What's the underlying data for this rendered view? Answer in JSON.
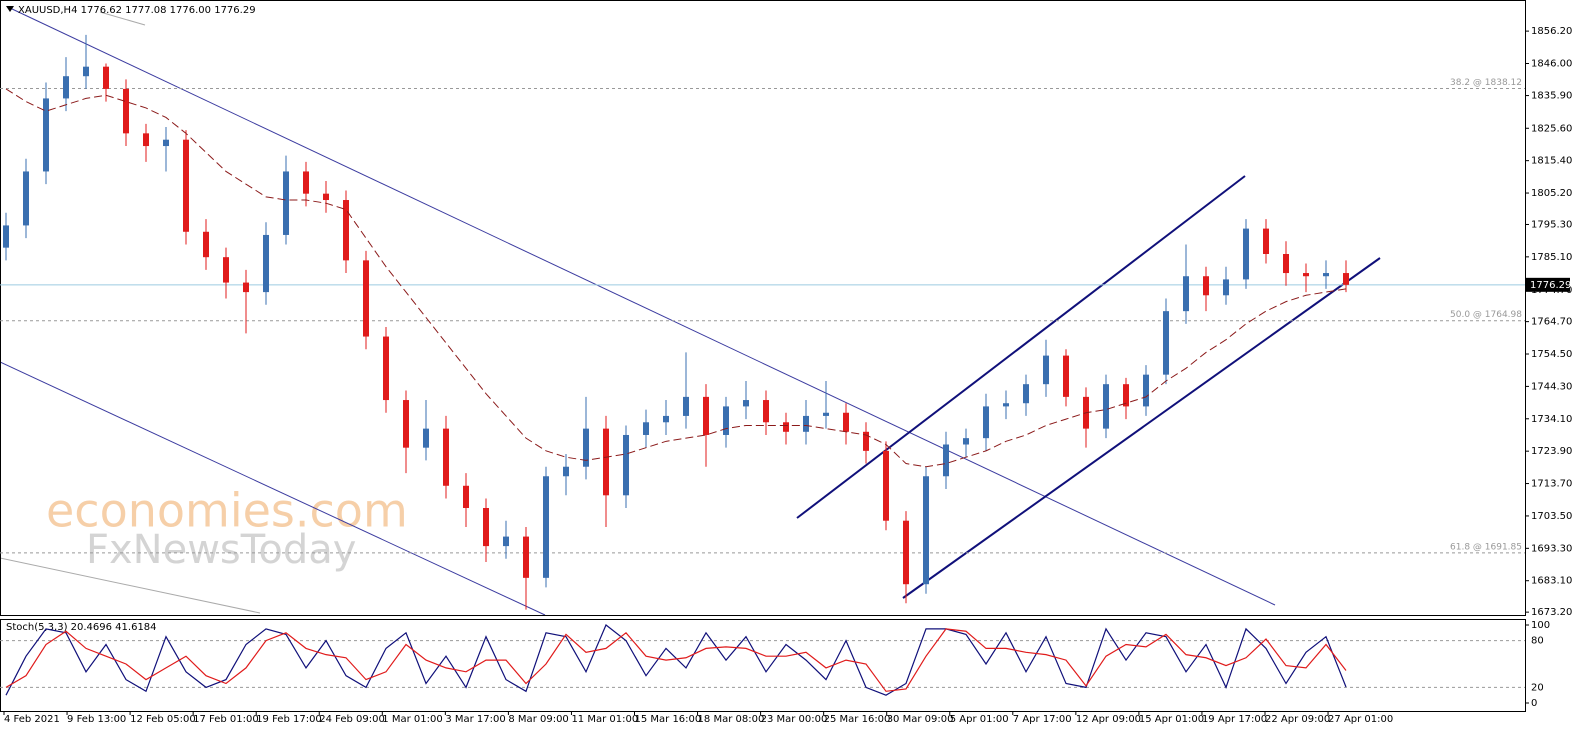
{
  "chart_data": [
    {
      "type": "candlestick",
      "title": "XAUUSD,H4  1776.62 1777.08 1776.00 1776.29",
      "watermark": [
        "economies.com",
        "FxNewsToday"
      ],
      "up_color": "#3a6fb0",
      "down_color": "#e01b1b",
      "open": [
        1788,
        1795,
        1812,
        1835,
        1842,
        1845,
        1838,
        1824,
        1820,
        1822,
        1793,
        1785,
        1777,
        1774,
        1792,
        1812,
        1805,
        1803,
        1784,
        1760,
        1740,
        1725,
        1731,
        1713,
        1706,
        1694,
        1697,
        1684,
        1716,
        1719,
        1731,
        1710,
        1729,
        1733,
        1735,
        1741,
        1729,
        1738,
        1740,
        1733,
        1730,
        1735,
        1736,
        1730,
        1724,
        1702,
        1682,
        1716,
        1726,
        1728,
        1738,
        1739,
        1745,
        1754,
        1741,
        1731,
        1745,
        1738,
        1748,
        1768,
        1779,
        1773,
        1778,
        1794,
        1786,
        1780,
        1779,
        1780
      ],
      "high": [
        1799,
        1816,
        1840,
        1848,
        1855,
        1846,
        1841,
        1827,
        1826,
        1825,
        1797,
        1788,
        1781,
        1796,
        1817,
        1815,
        1809,
        1806,
        1787,
        1763,
        1743,
        1740,
        1735,
        1717,
        1709,
        1702,
        1700,
        1719,
        1723,
        1741,
        1735,
        1732,
        1737,
        1740,
        1755,
        1745,
        1741,
        1746,
        1743,
        1736,
        1740,
        1746,
        1739,
        1733,
        1727,
        1705,
        1719,
        1730,
        1731,
        1742,
        1743,
        1748,
        1759,
        1756,
        1744,
        1748,
        1747,
        1751,
        1772,
        1789,
        1782,
        1782,
        1797,
        1797,
        1790,
        1783,
        1784,
        1784
      ],
      "low": [
        1784,
        1791,
        1808,
        1831,
        1838,
        1834,
        1820,
        1815,
        1812,
        1789,
        1781,
        1772,
        1761,
        1770,
        1789,
        1801,
        1799,
        1780,
        1756,
        1736,
        1717,
        1721,
        1709,
        1700,
        1689,
        1690,
        1674,
        1681,
        1710,
        1715,
        1700,
        1706,
        1725,
        1729,
        1731,
        1719,
        1725,
        1734,
        1729,
        1726,
        1726,
        1731,
        1726,
        1720,
        1699,
        1676,
        1679,
        1712,
        1722,
        1724,
        1734,
        1735,
        1741,
        1738,
        1725,
        1728,
        1734,
        1735,
        1745,
        1764,
        1768,
        1770,
        1775,
        1783,
        1776,
        1774,
        1775,
        1774
      ],
      "close": [
        1795,
        1812,
        1835,
        1842,
        1845,
        1838,
        1824,
        1820,
        1822,
        1793,
        1785,
        1777,
        1774,
        1792,
        1812,
        1805,
        1803,
        1784,
        1760,
        1740,
        1725,
        1731,
        1713,
        1706,
        1694,
        1697,
        1684,
        1716,
        1719,
        1731,
        1710,
        1729,
        1733,
        1735,
        1741,
        1729,
        1738,
        1740,
        1733,
        1730,
        1735,
        1736,
        1730,
        1724,
        1702,
        1682,
        1716,
        1726,
        1728,
        1738,
        1739,
        1745,
        1754,
        1741,
        1731,
        1745,
        1738,
        1748,
        1768,
        1779,
        1773,
        1778,
        1794,
        1786,
        1780,
        1779,
        1780,
        1776.29
      ],
      "overlay": {
        "color": "#8b1a1a",
        "values": [
          1838,
          1834,
          1831,
          1833,
          1835,
          1836,
          1834,
          1832,
          1829,
          1824,
          1818,
          1812,
          1808,
          1804,
          1803,
          1803,
          1802,
          1800,
          1791,
          1782,
          1774,
          1766,
          1758,
          1750,
          1742,
          1735,
          1728,
          1724,
          1722,
          1721,
          1722,
          1723,
          1725,
          1727,
          1728,
          1729,
          1731,
          1732,
          1732,
          1732,
          1732,
          1731,
          1730,
          1729,
          1726,
          1720,
          1719,
          1720,
          1722,
          1724,
          1727,
          1729,
          1732,
          1734,
          1736,
          1737,
          1739,
          1741,
          1746,
          1750,
          1755,
          1759,
          1764,
          1768,
          1771,
          1773,
          1774,
          1775
        ]
      },
      "current_price": 1776.29,
      "levels": [
        {
          "value": 1838.12,
          "label": "38.2 @ 1838.12"
        },
        {
          "value": 1764.98,
          "label": "50.0 @ 1764.98"
        },
        {
          "value": 1691.85,
          "label": "61.8 @ 1691.85"
        }
      ],
      "ylim": [
        1672.3,
        1866.0
      ],
      "yticks": [
        {
          "value": 1856.2,
          "label": "1856.20"
        },
        {
          "value": 1846.0,
          "label": "1846.00"
        },
        {
          "value": 1835.9,
          "label": "1835.90"
        },
        {
          "value": 1825.6,
          "label": "1825.60"
        },
        {
          "value": 1815.4,
          "label": "1815.40"
        },
        {
          "value": 1805.2,
          "label": "1805.20"
        },
        {
          "value": 1795.3,
          "label": "1795.30"
        },
        {
          "value": 1785.1,
          "label": "1785.10"
        },
        {
          "value": 1774.7,
          "label": "1774.70"
        },
        {
          "value": 1764.7,
          "label": "1764.70"
        },
        {
          "value": 1754.5,
          "label": "1754.50"
        },
        {
          "value": 1744.3,
          "label": "1744.30"
        },
        {
          "value": 1734.1,
          "label": "1734.10"
        },
        {
          "value": 1723.9,
          "label": "1723.90"
        },
        {
          "value": 1713.7,
          "label": "1713.70"
        },
        {
          "value": 1703.5,
          "label": "1703.50"
        },
        {
          "value": 1693.3,
          "label": "1693.30"
        },
        {
          "value": 1683.1,
          "label": "1683.10"
        },
        {
          "value": 1673.2,
          "label": "1673.20"
        }
      ],
      "time_labels": [
        "4 Feb 2021",
        "9 Feb 13:00",
        "12 Feb 05:00",
        "17 Feb 01:00",
        "19 Feb 17:00",
        "24 Feb 09:00",
        "1 Mar 01:00",
        "3 Mar 17:00",
        "8 Mar 09:00",
        "11 Mar 01:00",
        "15 Mar 16:00",
        "18 Mar 08:00",
        "23 Mar 00:00",
        "25 Mar 16:00",
        "30 Mar 09:00",
        "5 Apr 01:00",
        "7 Apr 17:00",
        "12 Apr 09:00",
        "15 Apr 01:00",
        "19 Apr 17:00",
        "22 Apr 09:00",
        "27 Apr 01:00"
      ]
    },
    {
      "type": "line",
      "title": "Stoch(5,3,3) 20.4696 41.6184",
      "series": [
        {
          "color": "#10107a",
          "values": [
            10,
            60,
            95,
            90,
            40,
            75,
            30,
            15,
            85,
            40,
            20,
            30,
            75,
            95,
            88,
            45,
            80,
            35,
            20,
            70,
            90,
            25,
            60,
            20,
            85,
            30,
            15,
            90,
            85,
            40,
            100,
            80,
            35,
            70,
            45,
            90,
            55,
            85,
            40,
            75,
            55,
            30,
            80,
            20,
            10,
            25,
            95,
            95,
            88,
            50,
            90,
            40,
            85,
            25,
            20,
            95,
            55,
            90,
            85,
            40,
            75,
            20,
            95,
            70,
            25,
            65,
            85,
            20.47
          ]
        },
        {
          "color": "#e01b1b",
          "values": [
            20,
            35,
            75,
            92,
            70,
            60,
            50,
            30,
            45,
            60,
            35,
            25,
            45,
            80,
            90,
            70,
            62,
            58,
            30,
            40,
            75,
            55,
            45,
            40,
            55,
            55,
            25,
            50,
            88,
            65,
            70,
            90,
            60,
            55,
            58,
            70,
            72,
            70,
            60,
            60,
            65,
            45,
            55,
            50,
            15,
            18,
            60,
            95,
            92,
            70,
            70,
            65,
            62,
            55,
            22,
            60,
            75,
            72,
            88,
            62,
            58,
            48,
            58,
            82,
            48,
            45,
            75,
            41.62
          ]
        }
      ],
      "ylim": [
        0,
        100
      ],
      "yticks": [
        0,
        20,
        80,
        100
      ]
    }
  ]
}
